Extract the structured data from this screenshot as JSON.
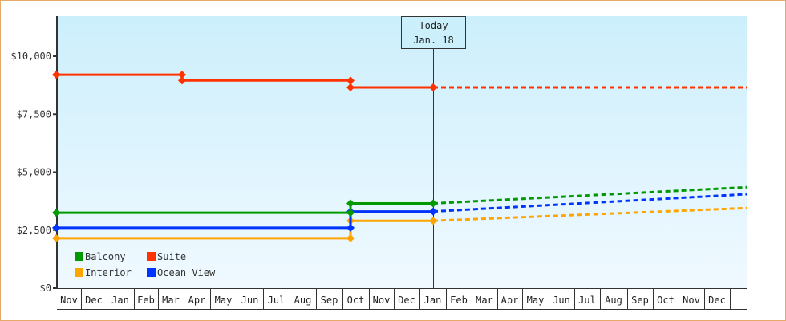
{
  "chart_data": {
    "type": "line",
    "title": "",
    "xlabel": "",
    "ylabel": "",
    "ylim": [
      0,
      12000
    ],
    "y_ticks": [
      "$0",
      "$2,500",
      "$5,000",
      "$7,500",
      "$10,000"
    ],
    "y_tick_values": [
      0,
      2500,
      5000,
      7500,
      10000
    ],
    "x_ticks": [
      "Nov",
      "Dec",
      "Jan",
      "Feb",
      "Mar",
      "Apr",
      "May",
      "Jun",
      "Jul",
      "Aug",
      "Sep",
      "Oct",
      "Nov",
      "Dec",
      "Jan",
      "Feb",
      "Mar",
      "Apr",
      "May",
      "Jun",
      "Jul",
      "Aug",
      "Sep",
      "Oct",
      "Nov",
      "Dec"
    ],
    "today_marker": {
      "label_line1": "Today",
      "label_line2": "Jan. 18"
    },
    "legend": [
      "Balcony",
      "Suite",
      "Interior",
      "Ocean View"
    ],
    "legend_position": "bottom-left inside",
    "grid": false,
    "series": [
      {
        "name": "Suite",
        "color": "#ff3300",
        "historical": [
          {
            "x": "Nov",
            "y": 9200
          },
          {
            "x": "Apr",
            "y": 9200
          },
          {
            "x": "Apr",
            "y": 8950
          },
          {
            "x": "Oct",
            "y": 8950
          },
          {
            "x": "Oct",
            "y": 8650
          },
          {
            "x": "Jan (today)",
            "y": 8650
          }
        ],
        "projected": [
          {
            "x": "Jan (today)",
            "y": 8650
          },
          {
            "x": "Dec (end)",
            "y": 8650
          }
        ]
      },
      {
        "name": "Balcony",
        "color": "#009900",
        "historical": [
          {
            "x": "Nov",
            "y": 3250
          },
          {
            "x": "Oct",
            "y": 3250
          },
          {
            "x": "Oct",
            "y": 3650
          },
          {
            "x": "Jan (today)",
            "y": 3650
          }
        ],
        "projected": [
          {
            "x": "Jan (today)",
            "y": 3650
          },
          {
            "x": "Dec (end)",
            "y": 4350
          }
        ]
      },
      {
        "name": "Ocean View",
        "color": "#0033ff",
        "historical": [
          {
            "x": "Nov",
            "y": 2600
          },
          {
            "x": "Oct",
            "y": 2600
          },
          {
            "x": "Oct",
            "y": 3300
          },
          {
            "x": "Jan (today)",
            "y": 3300
          }
        ],
        "projected": [
          {
            "x": "Jan (today)",
            "y": 3300
          },
          {
            "x": "Dec (end)",
            "y": 4050
          }
        ]
      },
      {
        "name": "Interior",
        "color": "#ffa500",
        "historical": [
          {
            "x": "Nov",
            "y": 2150
          },
          {
            "x": "Oct",
            "y": 2150
          },
          {
            "x": "Oct",
            "y": 2900
          },
          {
            "x": "Jan (today)",
            "y": 2900
          }
        ],
        "projected": [
          {
            "x": "Jan (today)",
            "y": 2900
          },
          {
            "x": "Dec (end)",
            "y": 3450
          }
        ]
      }
    ]
  },
  "colors": {
    "frame_border": "#e6a968",
    "plot_top": "#cceffc",
    "plot_bottom": "#f0f9ff",
    "axis": "#333333"
  }
}
